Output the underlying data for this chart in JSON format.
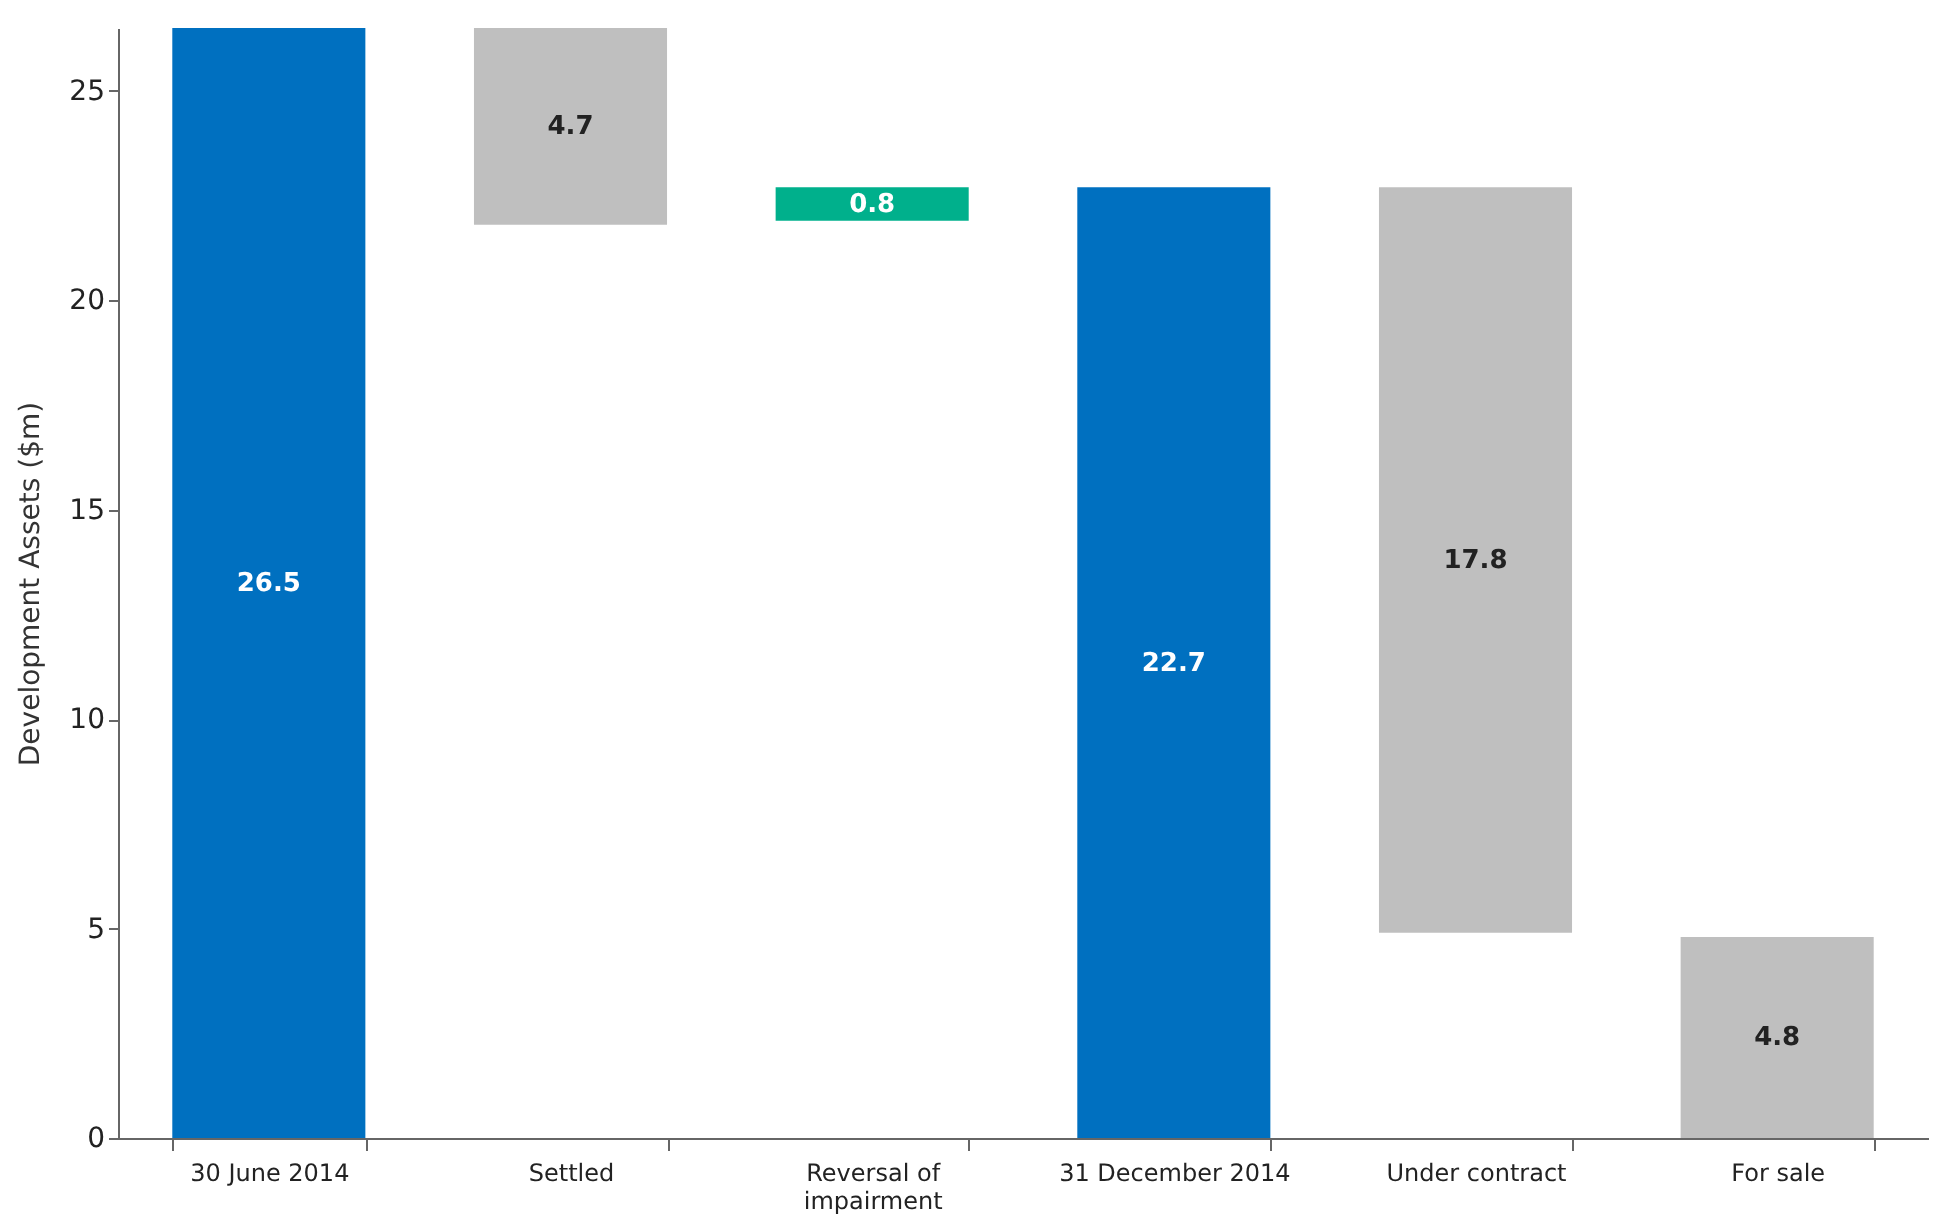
{
  "chart_data": {
    "type": "bar",
    "ylabel": "Development Assets ($m)",
    "categories": [
      "30 June 2014",
      "Settled",
      "Reversal of impairment",
      "31 December 2014",
      "Under contract",
      "For sale"
    ],
    "values": [
      26.5,
      4.7,
      0.8,
      22.7,
      17.8,
      4.8
    ],
    "base": [
      0,
      21.8,
      21.9,
      0,
      4.9,
      0
    ],
    "colors": [
      "#0070c0",
      "#bfbfbf",
      "#00b08c",
      "#0070c0",
      "#bfbfbf",
      "#bfbfbf"
    ],
    "ylim": [
      0,
      26.5
    ],
    "yticks": [
      0,
      5,
      10,
      15,
      20,
      25
    ],
    "data_labels": true,
    "grid": false
  }
}
